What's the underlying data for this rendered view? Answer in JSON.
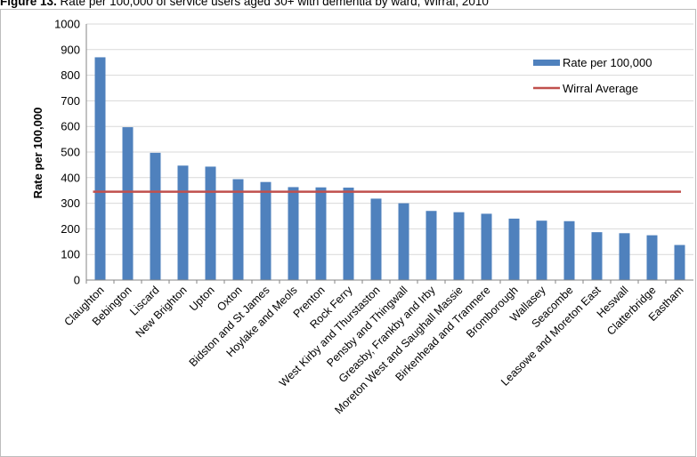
{
  "figure": {
    "label": "Figure 13.",
    "caption": "Rate per 100,000 of service users aged 30+ with dementia by ward, Wirral, 2010"
  },
  "chart_data": {
    "type": "bar",
    "ylabel": "Rate per 100,000",
    "xlabel": "",
    "ylim": [
      0,
      1000
    ],
    "yticks": [
      0,
      100,
      200,
      300,
      400,
      500,
      600,
      700,
      800,
      900,
      1000
    ],
    "grid": true,
    "legend_position": "top-right",
    "categories": [
      "Claughton",
      "Bebington",
      "Liscard",
      "New Brighton",
      "Upton",
      "Oxton",
      "Bidston and St James",
      "Hoylake and Meols",
      "Prenton",
      "Rock Ferry",
      "West Kirby and Thurstaston",
      "Pensby and Thingwall",
      "Greasby, Frankby and Irby",
      "Moreton West and Saughall Massie",
      "Birkenhead and Tranmere",
      "Bromborough",
      "Wallasey",
      "Seacombe",
      "Leasowe and Moreton East",
      "Heswall",
      "Clatterbridge",
      "Eastham"
    ],
    "series": [
      {
        "name": "Rate per 100,000",
        "kind": "bar",
        "color": "#4f81bd",
        "values": [
          870,
          597,
          497,
          447,
          443,
          394,
          383,
          363,
          362,
          361,
          318,
          300,
          270,
          265,
          259,
          240,
          232,
          230,
          187,
          183,
          175,
          137
        ]
      },
      {
        "name": "Wirral Average",
        "kind": "line",
        "color": "#c0504d",
        "value": 345
      }
    ]
  }
}
